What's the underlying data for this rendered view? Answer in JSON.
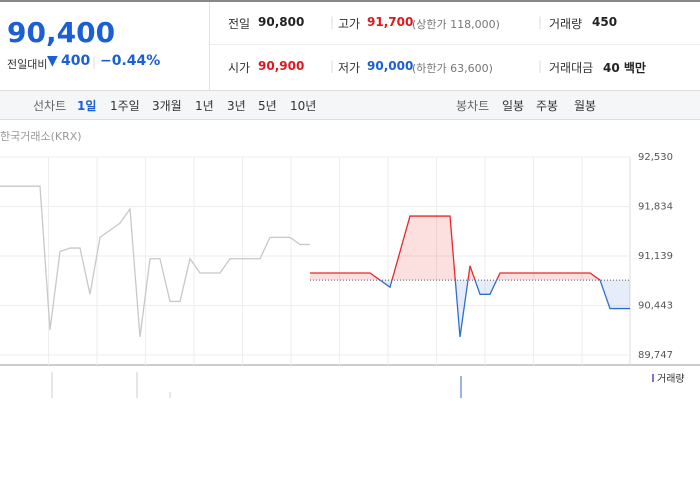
{
  "quote": {
    "price": "90,400",
    "change_label": "전일대비",
    "change": "400",
    "change_pct": "−0.44%"
  },
  "stats": [
    {
      "label": "전일",
      "value": "90,800"
    },
    {
      "label": "고가",
      "value": "91,700",
      "note": "(상한가 118,000)"
    },
    {
      "label": "거래량",
      "value": "450"
    },
    {
      "label": "시가",
      "value": "90,900"
    },
    {
      "label": "저가",
      "value": "90,000",
      "note": "(하한가 63,600)"
    },
    {
      "label": "거래대금",
      "value": "40 백만"
    }
  ],
  "tabs": {
    "line_label": "선차트",
    "line": [
      "1일",
      "1주일",
      "3개월",
      "1년",
      "3년",
      "5년",
      "10년"
    ],
    "candle_label": "봉차트",
    "candle": [
      "일봉",
      "주봉",
      "월봉"
    ]
  },
  "chart_data": {
    "type": "line",
    "source": "한국거래소(KRX)",
    "legend": "거래량",
    "ylim": [
      89747,
      92530
    ],
    "yticks": [
      {
        "value": 92530,
        "label": "92,530"
      },
      {
        "value": 91834,
        "label": "91,834"
      },
      {
        "value": 91139,
        "label": "91,139"
      },
      {
        "value": 90443,
        "label": "90,443"
      },
      {
        "value": 89747,
        "label": "89,747"
      }
    ],
    "reference_line": 90800,
    "grid": true,
    "series": [
      {
        "color": "#c8c8c8",
        "values": [
          92120,
          92120,
          92120,
          92120,
          92120,
          90100,
          91200,
          91250,
          91250,
          90600,
          91400,
          91500,
          91600,
          91800,
          90000,
          91100,
          91100,
          90500,
          90500,
          91100,
          90900,
          90900,
          90900,
          91100,
          91100,
          91100,
          91100,
          91400,
          91400,
          91400,
          91300,
          91300,
          null,
          null,
          null,
          null,
          null,
          null,
          null,
          null,
          null,
          null,
          null,
          null,
          null,
          null,
          null,
          null,
          null,
          null,
          null,
          null,
          null,
          null,
          null,
          null,
          null,
          null,
          null,
          null,
          null,
          null,
          null,
          null
        ]
      },
      {
        "up_color": "#e8282b",
        "down_color": "#2f6ecf",
        "values": [
          null,
          null,
          null,
          null,
          null,
          null,
          null,
          null,
          null,
          null,
          null,
          null,
          null,
          null,
          null,
          null,
          null,
          null,
          null,
          null,
          null,
          null,
          null,
          null,
          null,
          null,
          null,
          null,
          null,
          null,
          null,
          90900,
          90900,
          90900,
          90900,
          90900,
          90900,
          90900,
          90800,
          90700,
          91200,
          91700,
          91700,
          91700,
          91700,
          91700,
          90000,
          91000,
          90600,
          90600,
          90900,
          90900,
          90900,
          90900,
          90900,
          90900,
          90900,
          90900,
          90900,
          90900,
          90800,
          90400,
          90400,
          90400
        ]
      }
    ]
  }
}
